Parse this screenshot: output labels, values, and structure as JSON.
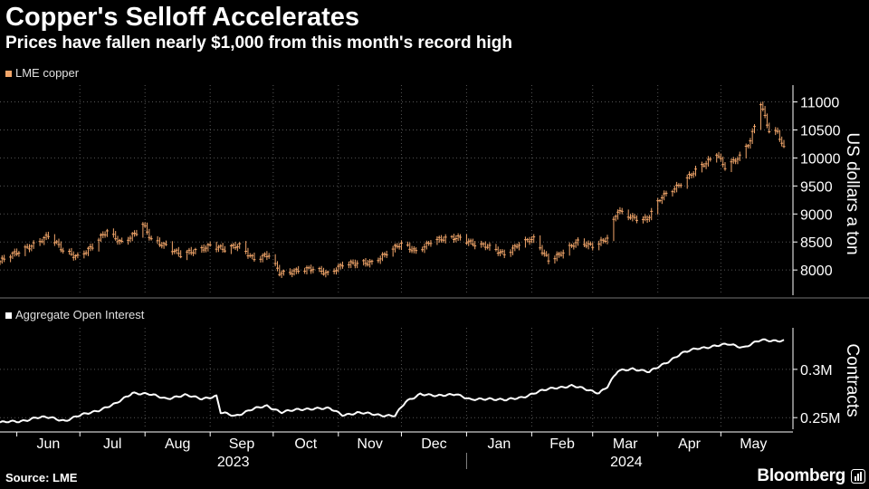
{
  "header": {
    "title": "Copper's Selloff Accelerates",
    "subtitle": "Prices have fallen nearly $1,000 from this month's record high"
  },
  "footer": {
    "source": "Source: LME",
    "brand": "Bloomberg"
  },
  "colors": {
    "background": "#000000",
    "copper": "#f2a66a",
    "open_interest": "#ffffff",
    "grid": "#555555",
    "axis_text": "#ffffff"
  },
  "chart_data": [
    {
      "type": "candlestick",
      "series": [
        {
          "name": "LME copper",
          "color": "#f2a66a"
        }
      ],
      "ylabel": "US dollars a ton",
      "ylim": [
        7550,
        11300
      ],
      "yticks": [
        8000,
        8500,
        9000,
        9500,
        10000,
        10500,
        11000
      ],
      "grid": true,
      "legend": "top-left",
      "anchors": [
        [
          "2023-05-24",
          8150
        ],
        [
          "2023-06-01",
          8300
        ],
        [
          "2023-06-08",
          8450
        ],
        [
          "2023-06-16",
          8600
        ],
        [
          "2023-06-23",
          8350
        ],
        [
          "2023-06-30",
          8250
        ],
        [
          "2023-07-07",
          8400
        ],
        [
          "2023-07-14",
          8700
        ],
        [
          "2023-07-21",
          8500
        ],
        [
          "2023-07-28",
          8650
        ],
        [
          "2023-07-31",
          8800
        ],
        [
          "2023-08-04",
          8550
        ],
        [
          "2023-08-11",
          8450
        ],
        [
          "2023-08-18",
          8250
        ],
        [
          "2023-08-25",
          8350
        ],
        [
          "2023-09-01",
          8450
        ],
        [
          "2023-09-08",
          8350
        ],
        [
          "2023-09-15",
          8450
        ],
        [
          "2023-09-22",
          8200
        ],
        [
          "2023-09-29",
          8250
        ],
        [
          "2023-10-04",
          7950
        ],
        [
          "2023-10-13",
          8000
        ],
        [
          "2023-10-20",
          8000
        ],
        [
          "2023-10-27",
          7950
        ],
        [
          "2023-11-03",
          8100
        ],
        [
          "2023-11-10",
          8100
        ],
        [
          "2023-11-17",
          8150
        ],
        [
          "2023-11-24",
          8300
        ],
        [
          "2023-12-01",
          8450
        ],
        [
          "2023-12-08",
          8350
        ],
        [
          "2023-12-15",
          8500
        ],
        [
          "2023-12-22",
          8550
        ],
        [
          "2023-12-29",
          8600
        ],
        [
          "2024-01-05",
          8450
        ],
        [
          "2024-01-12",
          8400
        ],
        [
          "2024-01-19",
          8300
        ],
        [
          "2024-01-26",
          8450
        ],
        [
          "2024-02-02",
          8550
        ],
        [
          "2024-02-09",
          8200
        ],
        [
          "2024-02-16",
          8300
        ],
        [
          "2024-02-23",
          8500
        ],
        [
          "2024-03-01",
          8450
        ],
        [
          "2024-03-08",
          8550
        ],
        [
          "2024-03-13",
          9050
        ],
        [
          "2024-03-20",
          8950
        ],
        [
          "2024-03-27",
          8900
        ],
        [
          "2024-04-03",
          9300
        ],
        [
          "2024-04-10",
          9500
        ],
        [
          "2024-04-17",
          9700
        ],
        [
          "2024-04-24",
          9900
        ],
        [
          "2024-04-29",
          10100
        ],
        [
          "2024-05-03",
          9850
        ],
        [
          "2024-05-10",
          10000
        ],
        [
          "2024-05-15",
          10300
        ],
        [
          "2024-05-20",
          11000
        ],
        [
          "2024-05-24",
          10500
        ],
        [
          "2024-05-28",
          10450
        ],
        [
          "2024-05-31",
          10150
        ]
      ]
    },
    {
      "type": "line",
      "series": [
        {
          "name": "Aggregate Open Interest",
          "color": "#ffffff"
        }
      ],
      "ylabel": "Contracts",
      "ylim": [
        0.238,
        0.343
      ],
      "yticks": [
        0.25,
        0.3
      ],
      "ytick_labels": [
        "0.25M",
        "0.3M"
      ],
      "grid": true,
      "legend": "top-left",
      "anchors": [
        [
          "2023-05-24",
          0.245
        ],
        [
          "2023-06-02",
          0.246
        ],
        [
          "2023-06-10",
          0.25
        ],
        [
          "2023-06-17",
          0.25
        ],
        [
          "2023-06-24",
          0.247
        ],
        [
          "2023-07-01",
          0.252
        ],
        [
          "2023-07-10",
          0.258
        ],
        [
          "2023-07-18",
          0.264
        ],
        [
          "2023-07-26",
          0.276
        ],
        [
          "2023-08-03",
          0.274
        ],
        [
          "2023-08-11",
          0.27
        ],
        [
          "2023-08-20",
          0.273
        ],
        [
          "2023-08-28",
          0.27
        ],
        [
          "2023-09-04",
          0.272
        ],
        [
          "2023-09-06",
          0.255
        ],
        [
          "2023-09-13",
          0.252
        ],
        [
          "2023-09-20",
          0.258
        ],
        [
          "2023-09-28",
          0.262
        ],
        [
          "2023-10-05",
          0.256
        ],
        [
          "2023-10-13",
          0.258
        ],
        [
          "2023-10-21",
          0.26
        ],
        [
          "2023-10-28",
          0.259
        ],
        [
          "2023-11-03",
          0.253
        ],
        [
          "2023-11-10",
          0.255
        ],
        [
          "2023-11-20",
          0.253
        ],
        [
          "2023-11-28",
          0.252
        ],
        [
          "2023-12-03",
          0.266
        ],
        [
          "2023-12-10",
          0.275
        ],
        [
          "2023-12-18",
          0.272
        ],
        [
          "2023-12-27",
          0.275
        ],
        [
          "2024-01-03",
          0.268
        ],
        [
          "2024-01-12",
          0.27
        ],
        [
          "2024-01-20",
          0.268
        ],
        [
          "2024-01-27",
          0.271
        ],
        [
          "2024-02-03",
          0.276
        ],
        [
          "2024-02-12",
          0.281
        ],
        [
          "2024-02-20",
          0.283
        ],
        [
          "2024-02-27",
          0.279
        ],
        [
          "2024-03-04",
          0.276
        ],
        [
          "2024-03-08",
          0.282
        ],
        [
          "2024-03-13",
          0.298
        ],
        [
          "2024-03-20",
          0.301
        ],
        [
          "2024-03-28",
          0.297
        ],
        [
          "2024-04-04",
          0.306
        ],
        [
          "2024-04-12",
          0.316
        ],
        [
          "2024-04-20",
          0.322
        ],
        [
          "2024-04-28",
          0.324
        ],
        [
          "2024-05-05",
          0.326
        ],
        [
          "2024-05-12",
          0.323
        ],
        [
          "2024-05-20",
          0.33
        ],
        [
          "2024-05-31",
          0.33
        ]
      ]
    }
  ],
  "x_axis": {
    "months": [
      {
        "label": "Jun",
        "start": "2023-06-01",
        "end": "2023-06-30"
      },
      {
        "label": "Jul",
        "start": "2023-07-01",
        "end": "2023-07-31"
      },
      {
        "label": "Aug",
        "start": "2023-08-01",
        "end": "2023-08-31"
      },
      {
        "label": "Sep",
        "start": "2023-09-01",
        "end": "2023-09-30"
      },
      {
        "label": "Oct",
        "start": "2023-10-01",
        "end": "2023-10-31"
      },
      {
        "label": "Nov",
        "start": "2023-11-01",
        "end": "2023-11-30"
      },
      {
        "label": "Dec",
        "start": "2023-12-01",
        "end": "2023-12-31"
      },
      {
        "label": "Jan",
        "start": "2024-01-01",
        "end": "2024-01-31"
      },
      {
        "label": "Feb",
        "start": "2024-02-01",
        "end": "2024-02-29"
      },
      {
        "label": "Mar",
        "start": "2024-03-01",
        "end": "2024-03-31"
      },
      {
        "label": "Apr",
        "start": "2024-04-01",
        "end": "2024-04-30"
      },
      {
        "label": "May",
        "start": "2024-05-01",
        "end": "2024-05-31"
      }
    ],
    "years": [
      {
        "label": "2023",
        "start": "2023-05-24",
        "end": "2023-12-31"
      },
      {
        "label": "2024",
        "start": "2024-01-01",
        "end": "2024-05-31"
      }
    ]
  }
}
